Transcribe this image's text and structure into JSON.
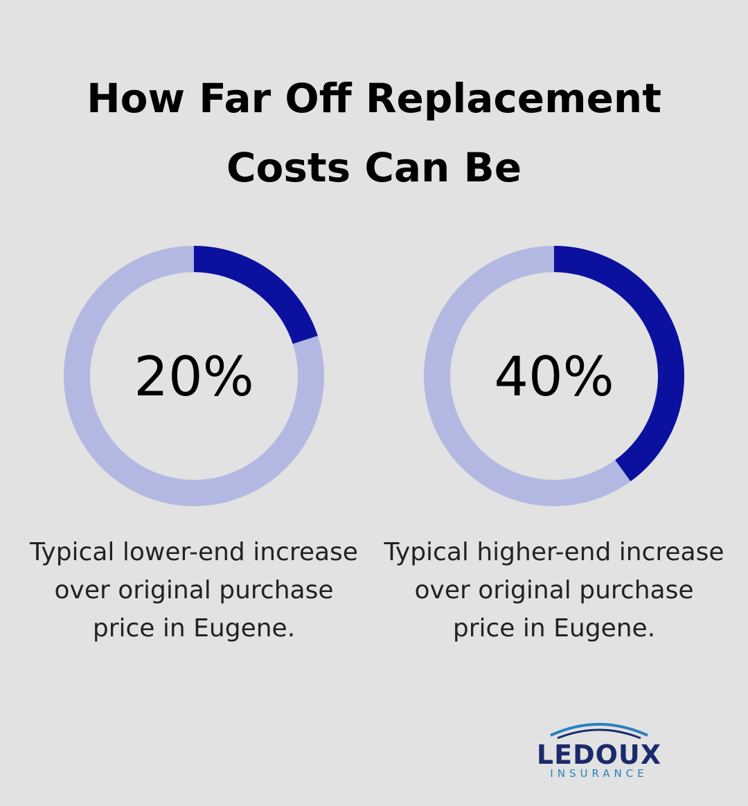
{
  "title": "How Far Off Replacement Costs Can Be",
  "chart_data": [
    {
      "type": "donut",
      "values": [
        20
      ],
      "value_labels": [
        "20%"
      ],
      "caption": "Typical lower-end increase over original purchase price in Eugene.",
      "color": "#0b119e",
      "track_color": "#b3b8e3"
    },
    {
      "type": "donut",
      "values": [
        40
      ],
      "value_labels": [
        "40%"
      ],
      "caption": "Typical higher-end increase over original purchase price in Eugene.",
      "color": "#0b119e",
      "track_color": "#b3b8e3"
    }
  ],
  "logo": {
    "name": "LEDOUX",
    "tagline": "INSURANCE"
  }
}
